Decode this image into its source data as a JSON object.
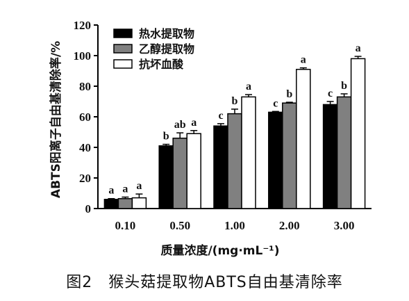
{
  "caption": "图2　猴头菇提取物ABTS自由基清除率",
  "chart_data": {
    "type": "bar",
    "categories": [
      "0.10",
      "0.50",
      "1.00",
      "2.00",
      "3.00"
    ],
    "xlabel": "质量浓度/(mg·mL⁻¹)",
    "ylabel": "ABTS阳离子自由基清除率/%",
    "ylim": [
      0,
      120
    ],
    "yticks": [
      "0",
      "20",
      "40",
      "60",
      "80",
      "100",
      "120"
    ],
    "legend_position": "top-left",
    "series": [
      {
        "name": "热水提取物",
        "color": "#000000",
        "values": [
          6,
          41,
          54,
          63,
          68
        ],
        "errors": [
          0.5,
          1,
          1.5,
          0.5,
          2
        ],
        "labels": [
          "a",
          "b",
          "c",
          "c",
          "c"
        ]
      },
      {
        "name": "乙醇提取物",
        "color": "#808080",
        "values": [
          6.5,
          46,
          62,
          69,
          73
        ],
        "errors": [
          1,
          3.5,
          3,
          0.5,
          2
        ],
        "labels": [
          "a",
          "ab",
          "b",
          "b",
          "b"
        ]
      },
      {
        "name": "抗坏血酸",
        "color": "#ffffff",
        "values": [
          7,
          49,
          73,
          91,
          98
        ],
        "errors": [
          2.5,
          2,
          1.5,
          1,
          1.5
        ],
        "labels": [
          "a",
          "a",
          "a",
          "a",
          "a"
        ]
      }
    ]
  }
}
